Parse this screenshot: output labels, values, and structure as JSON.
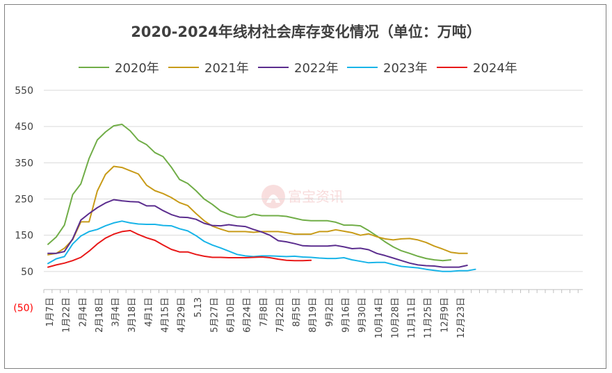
{
  "chart_data": {
    "type": "line",
    "title": "2020-2024年线材社会库存变化情况（单位：万吨）",
    "watermark": "富宝资讯",
    "ylim": [
      -50,
      550
    ],
    "yticks": [
      -50,
      50,
      150,
      250,
      350,
      450,
      550
    ],
    "ytick_labels": [
      "(50)",
      "50",
      "150",
      "250",
      "350",
      "450",
      "550"
    ],
    "grid": true,
    "legend_position": "top",
    "x_labels": [
      "1月7日",
      "1月22日",
      "2月4日",
      "2月18日",
      "3月4日",
      "3月18日",
      "4月1日",
      "4月15日",
      "4月29日",
      "5.13",
      "5月27日",
      "6月10日",
      "6月24日",
      "7月8日",
      "7月22日",
      "8月5日",
      "8月19日",
      "9月2日",
      "9月16日",
      "9月30日",
      "10月14日",
      "10月28日",
      "11月11日",
      "11月25日",
      "12月9日",
      "12月23日"
    ],
    "series": [
      {
        "name": "2020年",
        "color": "#70ad47",
        "values": [
          125,
          145,
          178,
          262,
          292,
          362,
          413,
          435,
          452,
          456,
          438,
          412,
          400,
          378,
          367,
          338,
          304,
          293,
          273,
          250,
          235,
          217,
          208,
          200,
          200,
          208,
          204,
          204,
          204,
          202,
          197,
          192,
          190,
          190,
          190,
          186,
          178,
          178,
          176,
          163,
          148,
          132,
          118,
          107,
          100,
          92,
          86,
          82,
          80,
          82
        ]
      },
      {
        "name": "2021年",
        "color": "#c89b18",
        "values": [
          96,
          100,
          114,
          138,
          187,
          187,
          272,
          318,
          340,
          337,
          328,
          319,
          288,
          273,
          265,
          254,
          240,
          232,
          210,
          190,
          175,
          167,
          160,
          160,
          160,
          158,
          160,
          160,
          160,
          157,
          153,
          153,
          153,
          160,
          160,
          165,
          161,
          157,
          150,
          154,
          146,
          140,
          137,
          140,
          141,
          137,
          130,
          120,
          112,
          103,
          100,
          100
        ]
      },
      {
        "name": "2022年",
        "color": "#5b2d8e",
        "values": [
          100,
          100,
          105,
          140,
          192,
          210,
          226,
          239,
          248,
          245,
          243,
          242,
          231,
          231,
          218,
          207,
          200,
          199,
          194,
          183,
          177,
          176,
          179,
          176,
          174,
          166,
          159,
          150,
          135,
          132,
          127,
          121,
          120,
          120,
          120,
          122,
          118,
          113,
          114,
          110,
          100,
          94,
          87,
          80,
          73,
          68,
          66,
          65,
          62,
          62,
          62,
          67
        ]
      },
      {
        "name": "2023年",
        "color": "#18b4e8",
        "values": [
          72,
          85,
          91,
          126,
          148,
          160,
          166,
          176,
          184,
          189,
          184,
          181,
          180,
          180,
          177,
          176,
          168,
          162,
          149,
          133,
          123,
          115,
          106,
          97,
          93,
          91,
          93,
          93,
          92,
          91,
          92,
          90,
          89,
          87,
          86,
          86,
          88,
          82,
          78,
          74,
          75,
          75,
          69,
          64,
          62,
          60,
          56,
          53,
          50,
          50,
          52,
          52,
          56
        ]
      },
      {
        "name": "2024年",
        "color": "#e81818",
        "values": [
          62,
          68,
          73,
          80,
          89,
          106,
          126,
          142,
          153,
          160,
          163,
          152,
          143,
          136,
          123,
          111,
          104,
          104,
          97,
          92,
          89,
          89,
          88,
          88,
          88,
          89,
          90,
          88,
          84,
          81,
          80,
          80,
          81
        ]
      }
    ]
  }
}
